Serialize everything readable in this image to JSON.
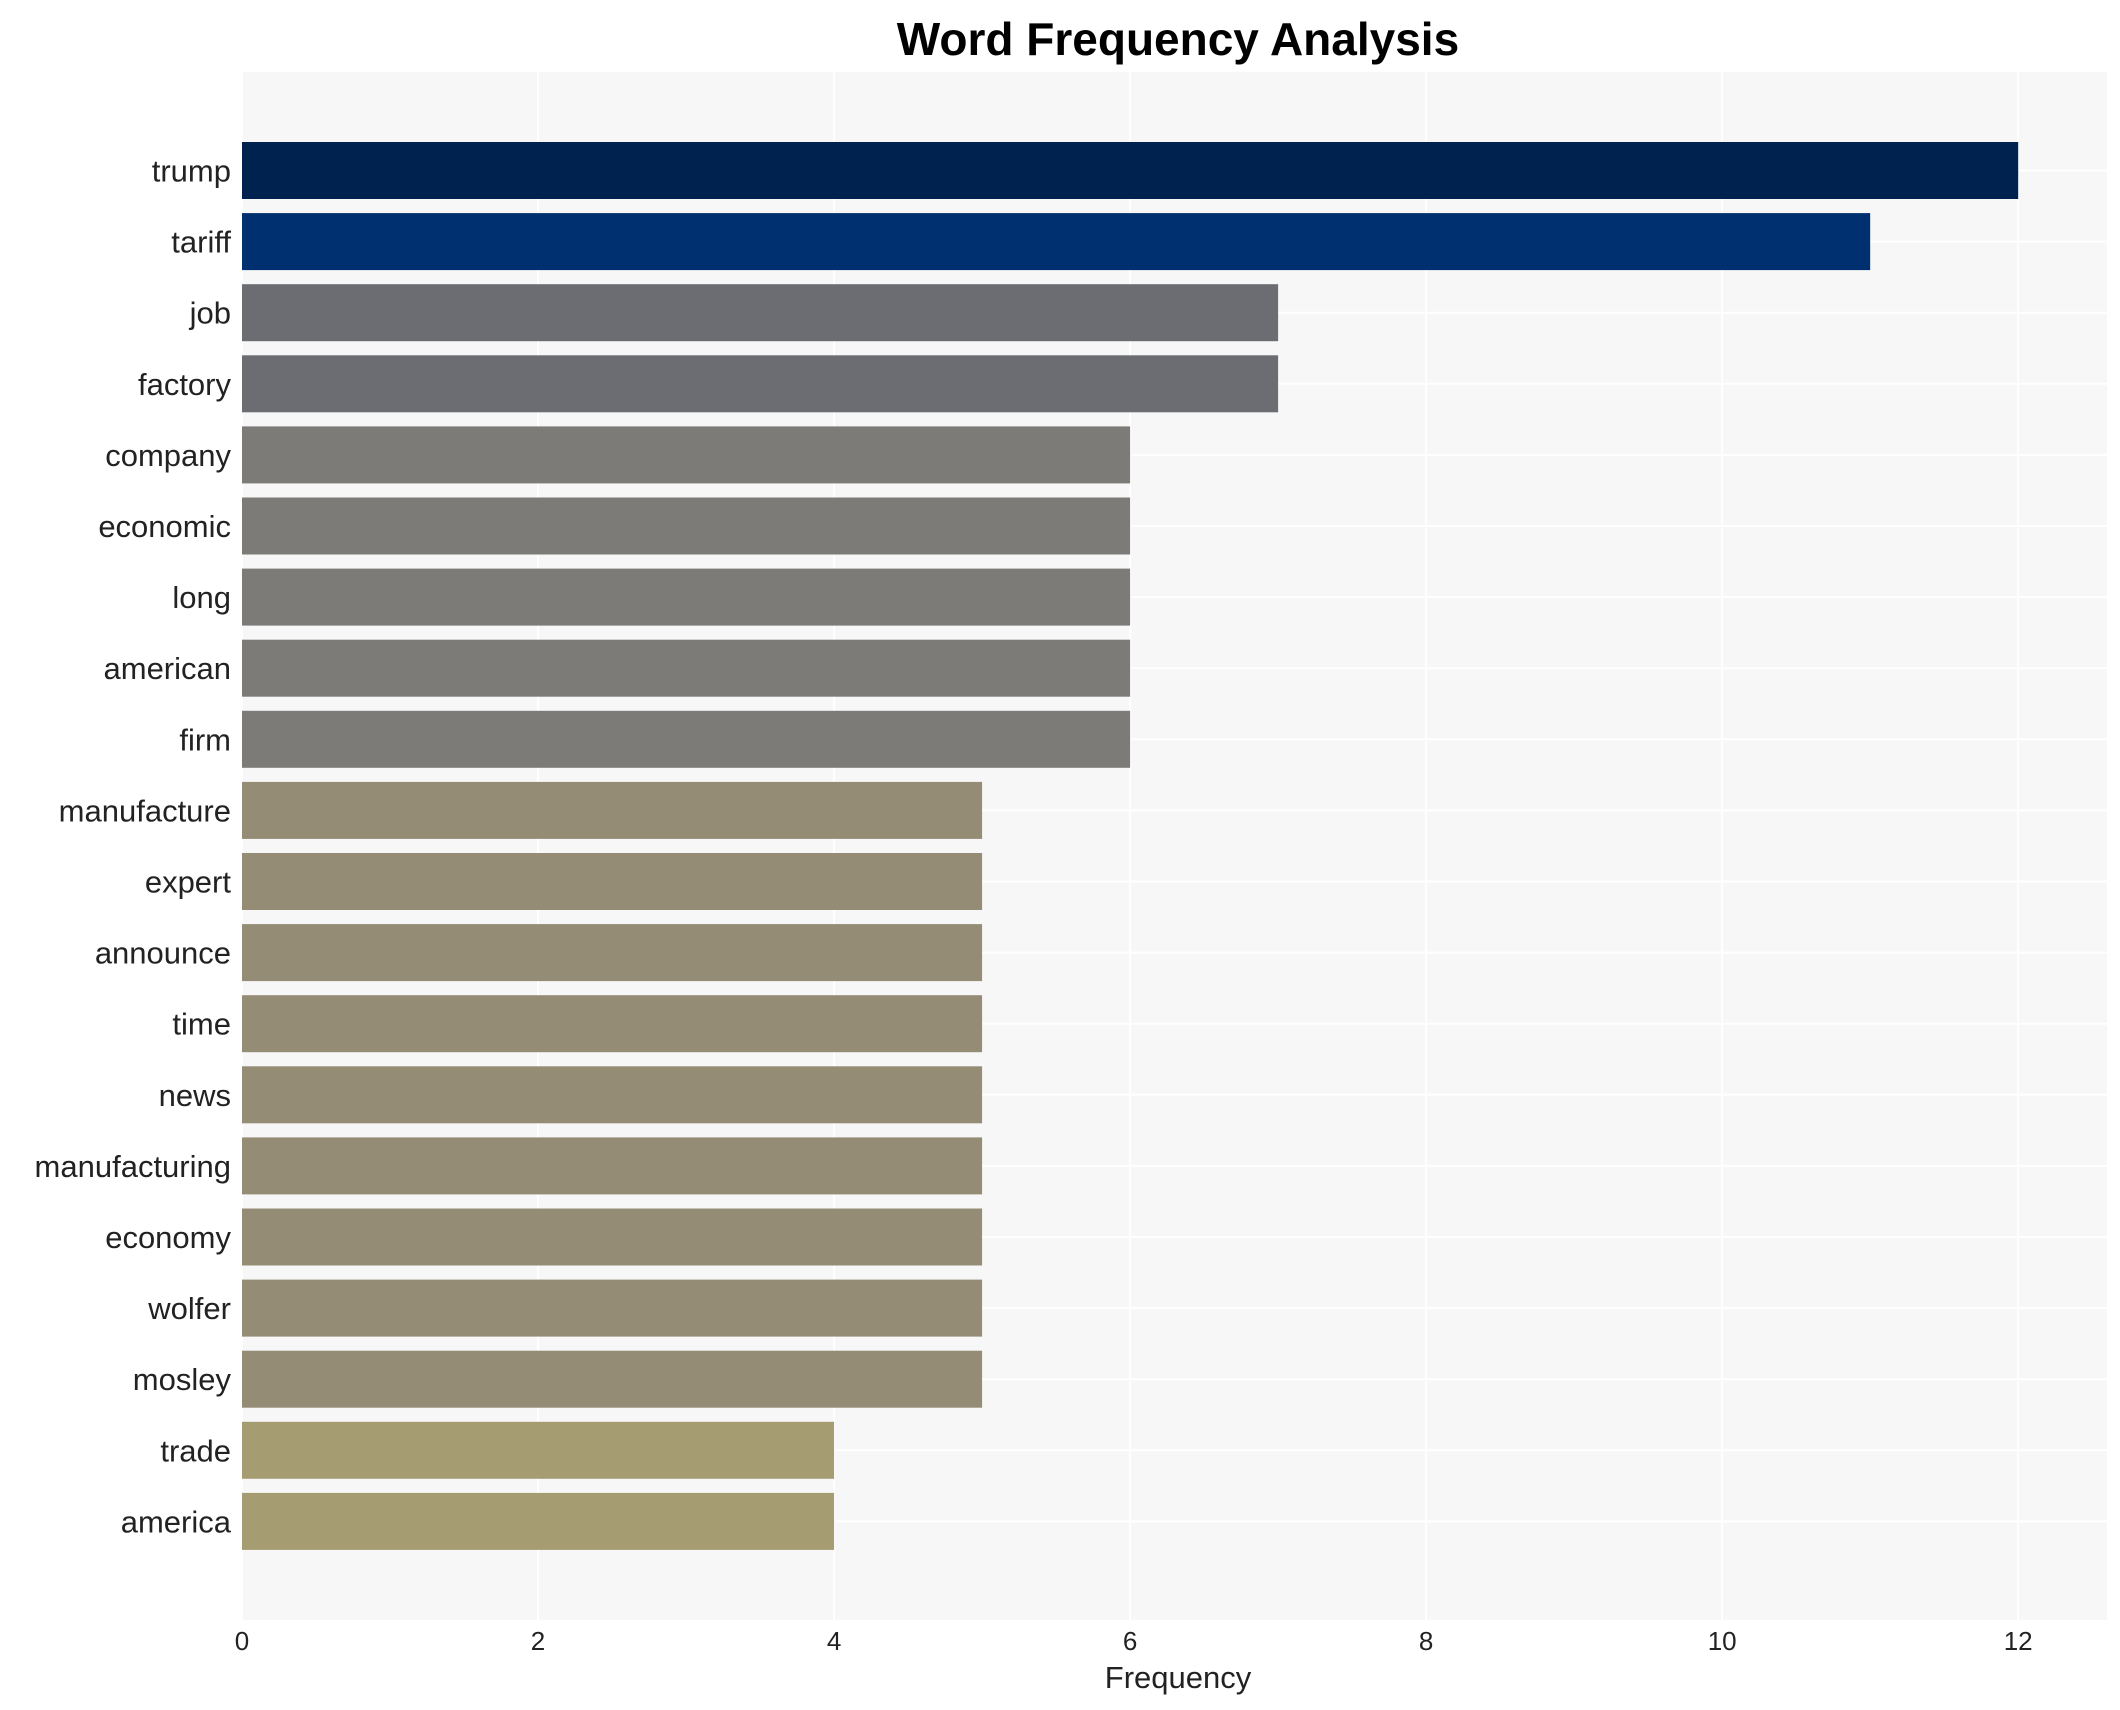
{
  "chart_data": {
    "type": "bar",
    "orientation": "horizontal",
    "title": "Word Frequency Analysis",
    "xlabel": "Frequency",
    "ylabel": "",
    "xlim": [
      0,
      12.6
    ],
    "xticks": [
      0,
      2,
      4,
      6,
      8,
      10,
      12
    ],
    "grid": true,
    "categories": [
      "trump",
      "tariff",
      "job",
      "factory",
      "company",
      "economic",
      "long",
      "american",
      "firm",
      "manufacture",
      "expert",
      "announce",
      "time",
      "news",
      "manufacturing",
      "economy",
      "wolfer",
      "mosley",
      "trade",
      "america"
    ],
    "values": [
      12,
      11,
      7,
      7,
      6,
      6,
      6,
      6,
      6,
      5,
      5,
      5,
      5,
      5,
      5,
      5,
      5,
      5,
      4,
      4
    ],
    "colors": [
      "#00224e",
      "#00306f",
      "#6b6d72",
      "#6b6d72",
      "#7c7b78",
      "#7c7b78",
      "#7c7b78",
      "#7c7b78",
      "#7c7b78",
      "#958c76",
      "#958c76",
      "#958c76",
      "#958c76",
      "#958c76",
      "#958c76",
      "#958c76",
      "#958c76",
      "#958c76",
      "#a59c72",
      "#a59c72"
    ],
    "background": "#f7f7f7"
  }
}
